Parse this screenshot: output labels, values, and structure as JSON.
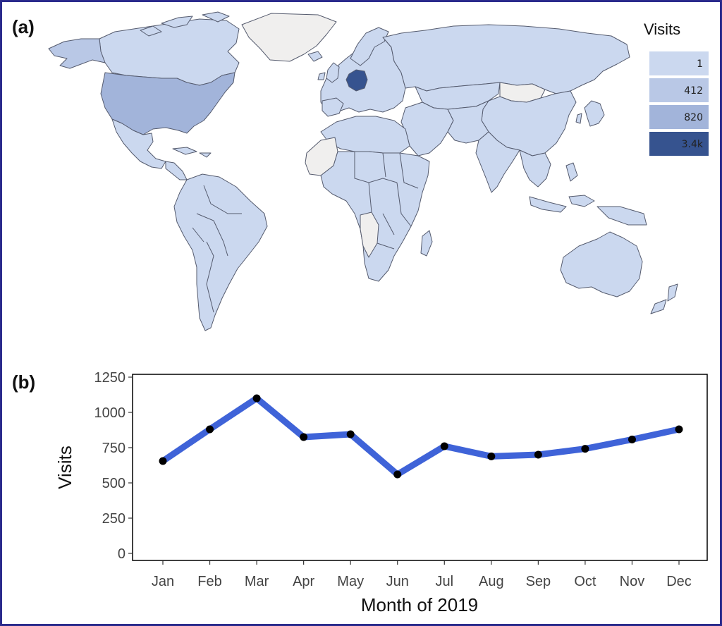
{
  "colors": {
    "frame": "#2b2b8c",
    "line": "#3f63d8",
    "point": "#000000",
    "nodata": "#f0efee",
    "fill_1": "#cbd8ef",
    "fill_412": "#b9c8e6",
    "fill_820": "#a2b4da",
    "fill_3400": "#36538f"
  },
  "chart_data": [
    {
      "type": "choropleth-map",
      "panel": "(a)",
      "legend": {
        "title": "Visits",
        "placement": "top-right",
        "entries": [
          {
            "label": "1",
            "value": 1,
            "color": "#cbd8ef"
          },
          {
            "label": "412",
            "value": 412,
            "color": "#b9c8e6"
          },
          {
            "label": "820",
            "value": 820,
            "color": "#a2b4da"
          },
          {
            "label": "3.4k",
            "value": 3400,
            "color": "#36538f"
          }
        ]
      },
      "highlight": {
        "region": "Germany",
        "value_bucket": "3.4k"
      },
      "no_data_color": "#f0efee"
    },
    {
      "type": "line",
      "panel": "(b)",
      "categories": [
        "Jan",
        "Feb",
        "Mar",
        "Apr",
        "May",
        "Jun",
        "Jul",
        "Aug",
        "Sep",
        "Oct",
        "Nov",
        "Dec"
      ],
      "series": [
        {
          "values": [
            655,
            880,
            1100,
            825,
            845,
            560,
            760,
            688,
            700,
            742,
            808,
            880
          ]
        }
      ],
      "xlabel": "Month of 2019",
      "ylabel": "Visits",
      "ylim": [
        0,
        1250
      ],
      "yticks": [
        0,
        250,
        500,
        750,
        1000,
        1250
      ],
      "grid": false
    }
  ]
}
